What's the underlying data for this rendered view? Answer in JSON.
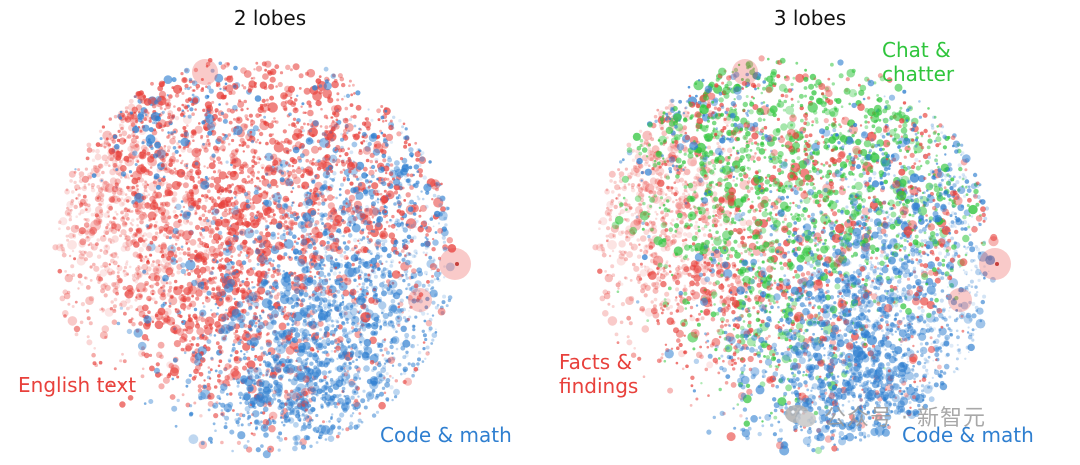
{
  "chart_data": [
    {
      "type": "scatter",
      "title": "2 lobes",
      "clusters": [
        {
          "name": "English text",
          "color": "#e8413c"
        },
        {
          "name": "Code & math",
          "color": "#2f7fd0"
        }
      ],
      "annotations": [
        "English text",
        "Code & math"
      ]
    },
    {
      "type": "scatter",
      "title": "3 lobes",
      "clusters": [
        {
          "name": "Facts & findings",
          "color": "#e8413c"
        },
        {
          "name": "Chat & chatter",
          "color": "#2fc53c"
        },
        {
          "name": "Code & math",
          "color": "#2f7fd0"
        }
      ],
      "annotations": [
        "Chat &\nchatter",
        "Facts &\nfindings",
        "Code & math"
      ]
    }
  ],
  "watermark": {
    "text": "公众号 · 新智元",
    "icon": "wechat-icon"
  }
}
